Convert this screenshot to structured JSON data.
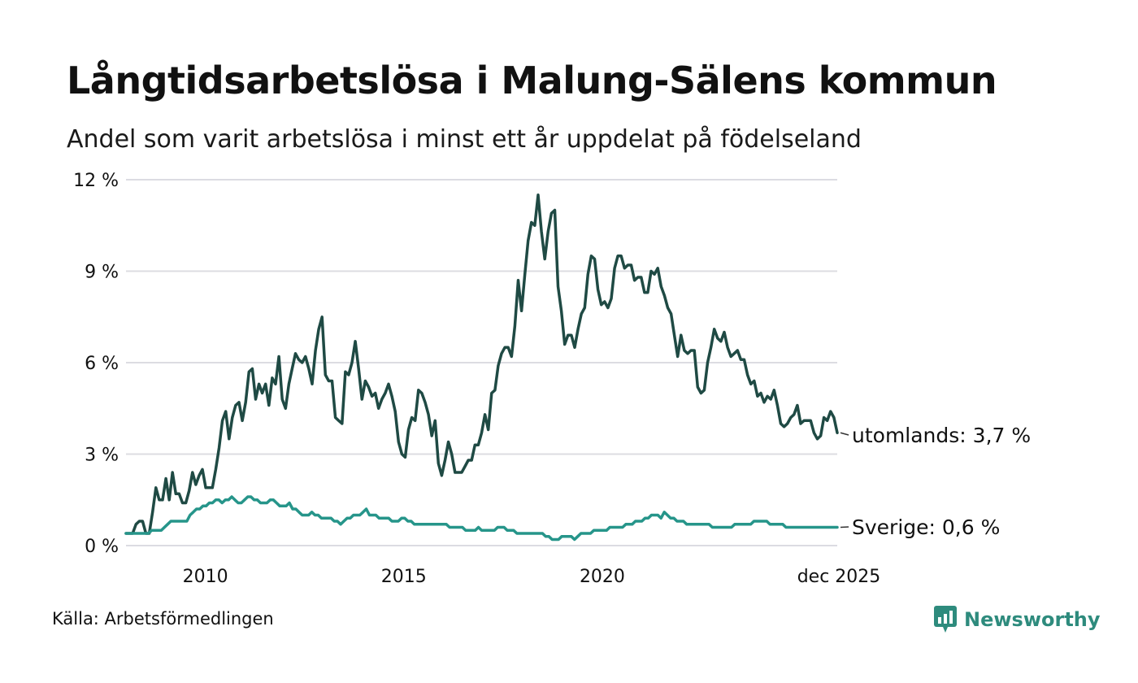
{
  "title": "Långtidsarbetslösa i Malung-Sälens kommun",
  "subtitle": "Andel som varit arbetslösa i minst ett år uppdelat på födelseland",
  "source": "Källa: Arbetsförmedlingen",
  "brand": {
    "name": "Newsworthy",
    "icon": "newsworthy-logo-icon",
    "color": "#2e8b7d"
  },
  "chart_data": {
    "type": "line",
    "title": "Långtidsarbetslösa i Malung-Sälens kommun",
    "xlabel": "",
    "ylabel": "",
    "x_start": "2008-01",
    "x_end": "2025-12",
    "xlim": [
      2008.0,
      2025.92
    ],
    "ylim": [
      0,
      12
    ],
    "y_ticks": [
      0,
      3,
      6,
      9,
      12
    ],
    "y_tick_labels": [
      "0 %",
      "3 %",
      "6 %",
      "9 %",
      "12 %"
    ],
    "x_ticks": [
      2010,
      2015,
      2020,
      2025.92
    ],
    "x_tick_labels": [
      "2010",
      "2015",
      "2020",
      "dec 2025"
    ],
    "grid": true,
    "series": [
      {
        "name": "utomlands",
        "end_label": "utomlands: 3,7 %",
        "color": "#1f4a44",
        "values": [
          0.4,
          0.4,
          0.4,
          0.7,
          0.8,
          0.8,
          0.4,
          0.4,
          1.1,
          1.9,
          1.5,
          1.5,
          2.2,
          1.5,
          2.4,
          1.7,
          1.7,
          1.4,
          1.4,
          1.8,
          2.4,
          2.0,
          2.3,
          2.5,
          1.9,
          1.9,
          1.9,
          2.5,
          3.2,
          4.1,
          4.4,
          3.5,
          4.2,
          4.6,
          4.7,
          4.1,
          4.7,
          5.7,
          5.8,
          4.8,
          5.3,
          5.0,
          5.3,
          4.6,
          5.5,
          5.3,
          6.2,
          4.8,
          4.5,
          5.3,
          5.8,
          6.3,
          6.1,
          6.0,
          6.2,
          5.8,
          5.3,
          6.4,
          7.1,
          7.5,
          5.6,
          5.4,
          5.4,
          4.2,
          4.1,
          4.0,
          5.7,
          5.6,
          6.0,
          6.7,
          5.8,
          4.8,
          5.4,
          5.2,
          4.9,
          5.0,
          4.5,
          4.8,
          5.0,
          5.3,
          4.9,
          4.4,
          3.4,
          3.0,
          2.9,
          3.8,
          4.2,
          4.1,
          5.1,
          5.0,
          4.7,
          4.3,
          3.6,
          4.1,
          2.7,
          2.3,
          2.8,
          3.4,
          3.0,
          2.4,
          2.4,
          2.4,
          2.6,
          2.8,
          2.8,
          3.3,
          3.3,
          3.7,
          4.3,
          3.8,
          5.0,
          5.1,
          5.9,
          6.3,
          6.5,
          6.5,
          6.2,
          7.2,
          8.7,
          7.7,
          8.9,
          10.0,
          10.6,
          10.5,
          11.5,
          10.3,
          9.4,
          10.3,
          10.9,
          11.0,
          8.5,
          7.7,
          6.6,
          6.9,
          6.9,
          6.5,
          7.1,
          7.6,
          7.8,
          8.9,
          9.5,
          9.4,
          8.4,
          7.9,
          8.0,
          7.8,
          8.1,
          9.1,
          9.5,
          9.5,
          9.1,
          9.2,
          9.2,
          8.7,
          8.8,
          8.8,
          8.3,
          8.3,
          9.0,
          8.9,
          9.1,
          8.5,
          8.2,
          7.8,
          7.6,
          6.9,
          6.2,
          6.9,
          6.4,
          6.3,
          6.4,
          6.4,
          5.2,
          5.0,
          5.1,
          6.0,
          6.5,
          7.1,
          6.8,
          6.7,
          7.0,
          6.5,
          6.2,
          6.3,
          6.4,
          6.1,
          6.1,
          5.6,
          5.3,
          5.4,
          4.9,
          5.0,
          4.7,
          4.9,
          4.8,
          5.1,
          4.6,
          4.0,
          3.9,
          4.0,
          4.2,
          4.3,
          4.6,
          4.0,
          4.1,
          4.1,
          4.1,
          3.7,
          3.5,
          3.6,
          4.2,
          4.1,
          4.4,
          4.2,
          3.7
        ]
      },
      {
        "name": "Sverige",
        "end_label": "Sverige: 0,6 %",
        "color": "#26958a",
        "values": [
          0.4,
          0.4,
          0.4,
          0.4,
          0.4,
          0.4,
          0.4,
          0.4,
          0.5,
          0.5,
          0.5,
          0.5,
          0.6,
          0.7,
          0.8,
          0.8,
          0.8,
          0.8,
          0.8,
          0.8,
          1.0,
          1.1,
          1.2,
          1.2,
          1.3,
          1.3,
          1.4,
          1.4,
          1.5,
          1.5,
          1.4,
          1.5,
          1.5,
          1.6,
          1.5,
          1.4,
          1.4,
          1.5,
          1.6,
          1.6,
          1.5,
          1.5,
          1.4,
          1.4,
          1.4,
          1.5,
          1.5,
          1.4,
          1.3,
          1.3,
          1.3,
          1.4,
          1.2,
          1.2,
          1.1,
          1.0,
          1.0,
          1.0,
          1.1,
          1.0,
          1.0,
          0.9,
          0.9,
          0.9,
          0.9,
          0.8,
          0.8,
          0.7,
          0.8,
          0.9,
          0.9,
          1.0,
          1.0,
          1.0,
          1.1,
          1.2,
          1.0,
          1.0,
          1.0,
          0.9,
          0.9,
          0.9,
          0.9,
          0.8,
          0.8,
          0.8,
          0.9,
          0.9,
          0.8,
          0.8,
          0.7,
          0.7,
          0.7,
          0.7,
          0.7,
          0.7,
          0.7,
          0.7,
          0.7,
          0.7,
          0.7,
          0.6,
          0.6,
          0.6,
          0.6,
          0.6,
          0.5,
          0.5,
          0.5,
          0.5,
          0.6,
          0.5,
          0.5,
          0.5,
          0.5,
          0.5,
          0.6,
          0.6,
          0.6,
          0.5,
          0.5,
          0.5,
          0.4,
          0.4,
          0.4,
          0.4,
          0.4,
          0.4,
          0.4,
          0.4,
          0.4,
          0.3,
          0.3,
          0.2,
          0.2,
          0.2,
          0.3,
          0.3,
          0.3,
          0.3,
          0.2,
          0.3,
          0.4,
          0.4,
          0.4,
          0.4,
          0.5,
          0.5,
          0.5,
          0.5,
          0.5,
          0.6,
          0.6,
          0.6,
          0.6,
          0.6,
          0.7,
          0.7,
          0.7,
          0.8,
          0.8,
          0.8,
          0.9,
          0.9,
          1.0,
          1.0,
          1.0,
          0.9,
          1.1,
          1.0,
          0.9,
          0.9,
          0.8,
          0.8,
          0.8,
          0.7,
          0.7,
          0.7,
          0.7,
          0.7,
          0.7,
          0.7,
          0.7,
          0.6,
          0.6,
          0.6,
          0.6,
          0.6,
          0.6,
          0.6,
          0.7,
          0.7,
          0.7,
          0.7,
          0.7,
          0.7,
          0.8,
          0.8,
          0.8,
          0.8,
          0.8,
          0.7,
          0.7,
          0.7,
          0.7,
          0.7,
          0.6,
          0.6,
          0.6,
          0.6,
          0.6,
          0.6,
          0.6,
          0.6,
          0.6,
          0.6,
          0.6,
          0.6,
          0.6,
          0.6,
          0.6,
          0.6,
          0.6
        ]
      }
    ]
  }
}
